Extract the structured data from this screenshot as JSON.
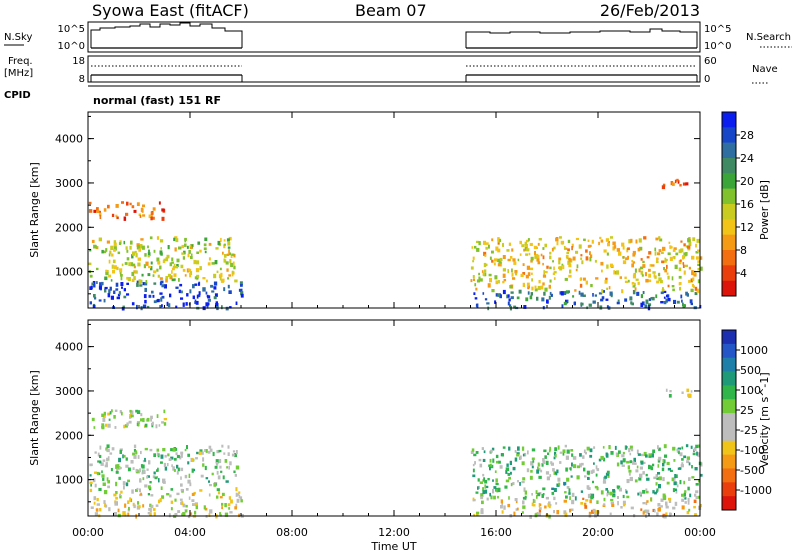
{
  "header": {
    "station": "Syowa East (fitACF)",
    "beam": "Beam 07",
    "date": "26/Feb/2013"
  },
  "strips": {
    "nsky": {
      "label": "N.Sky",
      "tick_top": "10^5",
      "tick_bottom": "10^0",
      "right_label": "N.Search",
      "right_tick_top": "10^5",
      "right_tick_bottom": "10^0"
    },
    "freq": {
      "label_line1": "Freq.",
      "label_line2": "[MHz]",
      "tick_top": "18",
      "tick_bottom": "8",
      "right_label": "Nave",
      "right_tick_top": "60",
      "right_tick_bottom": "0"
    },
    "cpid": {
      "label": "CPID",
      "text": "normal (fast) 151 RF"
    }
  },
  "axes": {
    "ylabel": "Slant Range [km]",
    "yticks": [
      "4000",
      "3000",
      "2000",
      "1000"
    ],
    "xticks": [
      "00:00",
      "04:00",
      "08:00",
      "12:00",
      "16:00",
      "20:00",
      "00:00"
    ],
    "xlabel": "Time UT"
  },
  "colorbars": {
    "power": {
      "label": "Power [dB]",
      "ticks": [
        "28",
        "24",
        "20",
        "16",
        "12",
        "8",
        "4"
      ],
      "colors": [
        "#0a1ef0",
        "#1846c8",
        "#2f6ea0",
        "#3f8a63",
        "#3ca53a",
        "#80c12c",
        "#c9cc1e",
        "#f2c418",
        "#f59a14",
        "#f26e10",
        "#ea3f0c",
        "#dc140a"
      ]
    },
    "velocity": {
      "label": "Velocity [m s^-1]",
      "ticks": [
        "1000",
        "500",
        "100",
        "25",
        "-25",
        "-100",
        "-500",
        "-1000"
      ],
      "colors": [
        "#1c2fb0",
        "#2456c8",
        "#1e7fa8",
        "#1e9a78",
        "#2fb54a",
        "#71cc36",
        "#bdbdbd",
        "#bdbdbd",
        "#f0c418",
        "#f59a14",
        "#f26e10",
        "#ea3f0c",
        "#dc140a"
      ]
    }
  },
  "chart_data": {
    "type": "heatmap",
    "x_unit": "hours UT",
    "xlim": [
      0,
      24
    ],
    "y_unit": "km",
    "ylim": [
      180,
      4600
    ],
    "data_intervals_hours": [
      [
        0.0,
        6.0
      ],
      [
        15.0,
        24.0
      ]
    ],
    "panels": [
      {
        "name": "Power [dB]",
        "scale": [
          0,
          30
        ],
        "echo_regions": [
          {
            "t": [
              0.0,
              6.0
            ],
            "r": [
              200,
              800
            ],
            "power_db": 26
          },
          {
            "t": [
              0.0,
              5.8
            ],
            "r": [
              800,
              1800
            ],
            "power_db": 14
          },
          {
            "t": [
              0.0,
              3.0
            ],
            "r": [
              2200,
              2600
            ],
            "power_db": 6
          },
          {
            "t": [
              15.0,
              24.0
            ],
            "r": [
              200,
              600
            ],
            "power_db": 24
          },
          {
            "t": [
              15.0,
              24.0
            ],
            "r": [
              600,
              1800
            ],
            "power_db": 12
          },
          {
            "t": [
              22.5,
              23.7
            ],
            "r": [
              2900,
              3100
            ],
            "power_db": 6
          }
        ]
      },
      {
        "name": "Velocity [m s^-1]",
        "scale": [
          -1000,
          1000
        ],
        "echo_regions": [
          {
            "t": [
              0.0,
              6.0
            ],
            "r": [
              200,
              800
            ],
            "velocity": -100
          },
          {
            "t": [
              0.0,
              5.8
            ],
            "r": [
              800,
              1800
            ],
            "velocity": 100
          },
          {
            "t": [
              0.0,
              3.0
            ],
            "r": [
              2200,
              2600
            ],
            "velocity": 0
          },
          {
            "t": [
              15.0,
              24.0
            ],
            "r": [
              200,
              600
            ],
            "velocity": -200
          },
          {
            "t": [
              15.0,
              24.0
            ],
            "r": [
              600,
              1800
            ],
            "velocity": 200
          },
          {
            "t": [
              22.5,
              23.7
            ],
            "r": [
              2900,
              3100
            ],
            "velocity": 0
          }
        ]
      }
    ]
  }
}
